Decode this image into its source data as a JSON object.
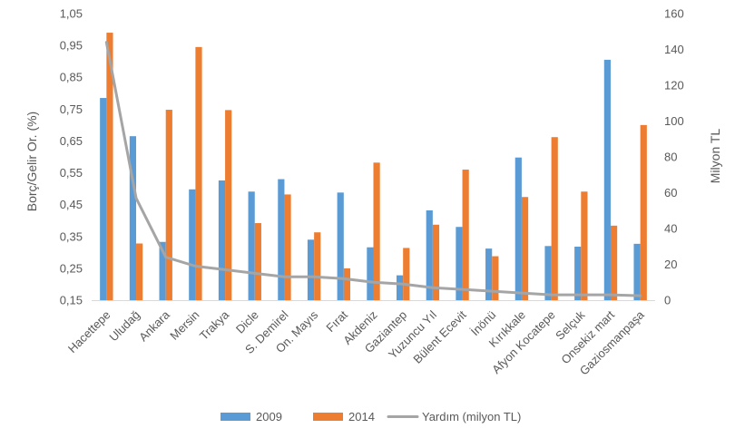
{
  "chart_data": {
    "type": "bar",
    "title": "",
    "ylabel": "Borç/Gelir Or. (%)",
    "y2label": "Milyon TL",
    "ylim": [
      0.15,
      1.05
    ],
    "y_ticks": [
      "0,15",
      "0,25",
      "0,35",
      "0,45",
      "0,55",
      "0,65",
      "0,75",
      "0,85",
      "0,95",
      "1,05"
    ],
    "y2lim": [
      0,
      160
    ],
    "y2_ticks": [
      "0",
      "20",
      "40",
      "60",
      "80",
      "100",
      "120",
      "140",
      "160"
    ],
    "grid": false,
    "legend_position": "bottom",
    "categories": [
      "Hacettepe",
      "Uludağ",
      "Ankara",
      "Mersin",
      "Trakya",
      "Dicle",
      "S. Demirel",
      "On. Mayıs",
      "Fırat",
      "Akdeniz",
      "Gaziantep",
      "Yuzuncu Yıl",
      "Bülent Ecevit",
      "İnönü",
      "Kırıkkale",
      "Afyon Kocatepe",
      "Selçuk",
      "Onsekiz mart",
      "Gaziosmanpaşa"
    ],
    "series": [
      {
        "name": "2009",
        "kind": "bar",
        "axis": "left",
        "color": "#5b9bd5",
        "values": [
          0.785,
          0.665,
          0.333,
          0.498,
          0.526,
          0.491,
          0.53,
          0.34,
          0.488,
          0.316,
          0.228,
          0.432,
          0.38,
          0.312,
          0.598,
          0.32,
          0.318,
          0.905,
          0.327
        ]
      },
      {
        "name": "2014",
        "kind": "bar",
        "axis": "left",
        "color": "#ed7d31",
        "values": [
          0.99,
          0.328,
          0.748,
          0.945,
          0.747,
          0.392,
          0.482,
          0.363,
          0.25,
          0.582,
          0.314,
          0.387,
          0.56,
          0.288,
          0.474,
          0.662,
          0.491,
          0.384,
          0.7
        ]
      },
      {
        "name": "Yardım (milyon TL)",
        "kind": "line",
        "axis": "right",
        "color": "#a5a5a5",
        "values": [
          144,
          57,
          24,
          19,
          17,
          15,
          13,
          13,
          12,
          10,
          9,
          7,
          6,
          5,
          4,
          3,
          3,
          3,
          2.5
        ]
      }
    ]
  }
}
